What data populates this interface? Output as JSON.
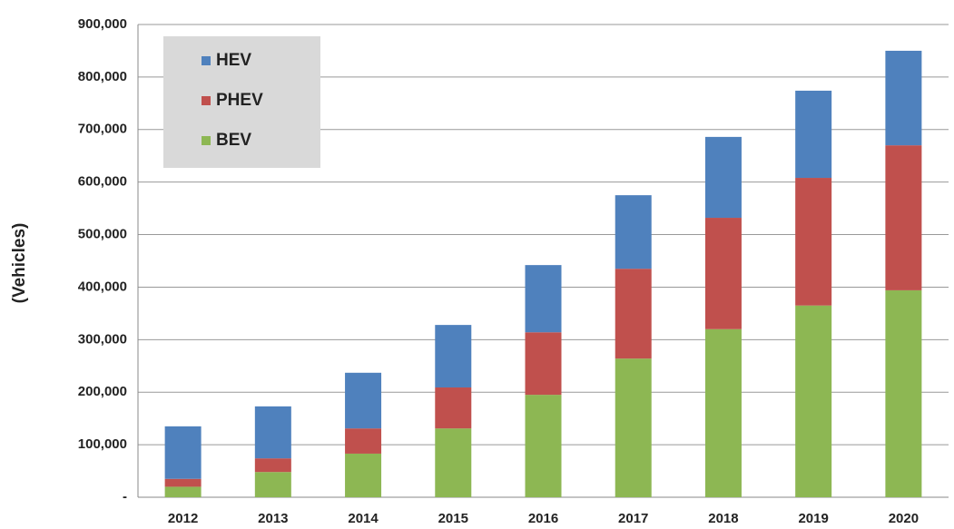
{
  "chart_data": {
    "type": "stacked_bar",
    "ylabel": "(Vehicles)",
    "categories": [
      "2012",
      "2013",
      "2014",
      "2015",
      "2016",
      "2017",
      "2018",
      "2019",
      "2020"
    ],
    "series": [
      {
        "name": "BEV",
        "color": "#8db753",
        "values": [
          20000,
          48000,
          83000,
          131000,
          195000,
          264000,
          320000,
          365000,
          394000
        ]
      },
      {
        "name": "PHEV",
        "color": "#c0504d",
        "values": [
          15000,
          26000,
          48000,
          78000,
          119000,
          171000,
          212000,
          243000,
          276000
        ]
      },
      {
        "name": "HEV",
        "color": "#4f81bd",
        "values": [
          100000,
          99000,
          106000,
          119000,
          128000,
          140000,
          154000,
          166000,
          180000
        ]
      }
    ],
    "ylim": [
      0,
      900000
    ],
    "yticks": [
      {
        "value": 0,
        "label": "-"
      },
      {
        "value": 100000,
        "label": "100,000"
      },
      {
        "value": 200000,
        "label": "200,000"
      },
      {
        "value": 300000,
        "label": "300,000"
      },
      {
        "value": 400000,
        "label": "400,000"
      },
      {
        "value": 500000,
        "label": "500,000"
      },
      {
        "value": 600000,
        "label": "600,000"
      },
      {
        "value": 700000,
        "label": "700,000"
      },
      {
        "value": 800000,
        "label": "800,000"
      },
      {
        "value": 900000,
        "label": "900,000"
      }
    ],
    "grid": true,
    "legend_position": "upper left"
  }
}
